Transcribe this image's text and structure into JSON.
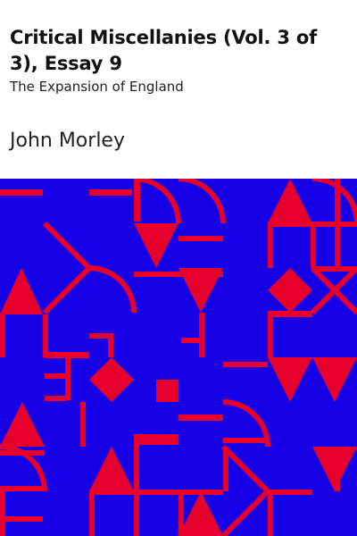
{
  "book": {
    "title": "Critical Miscellanies (Vol. 3 of 3), Essay 9",
    "subtitle": "The Expansion of England",
    "author": "John Morley"
  },
  "colors": {
    "background": "#ffffff",
    "art_background": "#1600e6",
    "art_shapes": "#e8002c"
  }
}
